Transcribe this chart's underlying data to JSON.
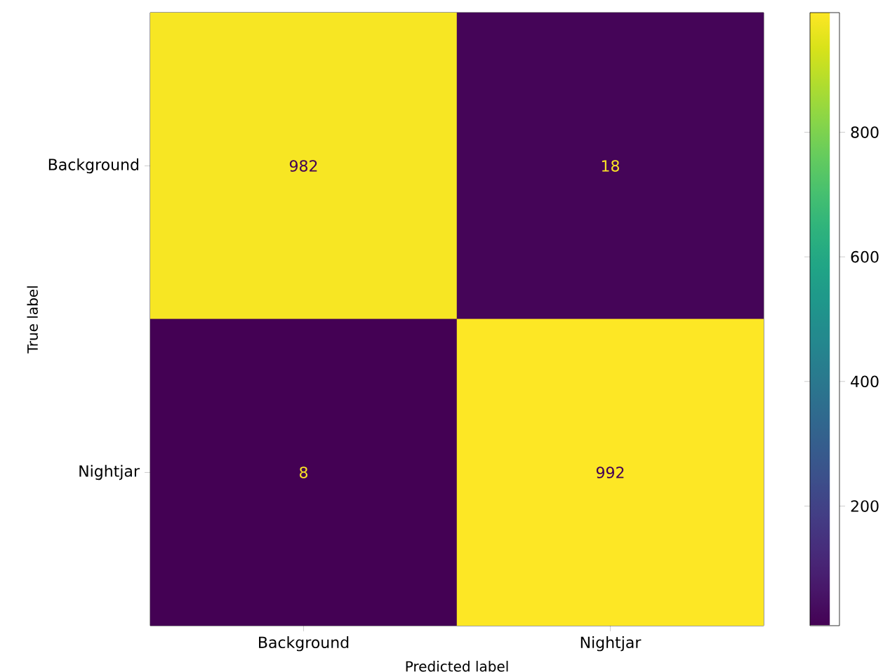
{
  "chart_data": {
    "type": "heatmap",
    "xlabel": "Predicted label",
    "ylabel": "True label",
    "categories": [
      "Background",
      "Nightjar"
    ],
    "y_categories": [
      "Background",
      "Nightjar"
    ],
    "cells": [
      [
        982,
        18
      ],
      [
        8,
        992
      ]
    ],
    "data_labels": true,
    "clim": [
      8,
      992
    ],
    "cticks": [
      200,
      400,
      600,
      800
    ]
  }
}
